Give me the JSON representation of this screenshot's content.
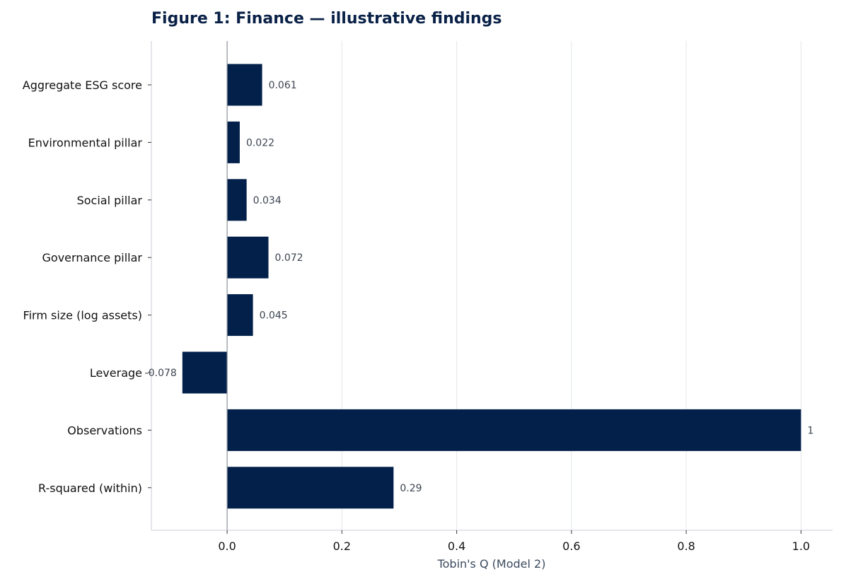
{
  "chart_data": {
    "type": "bar",
    "orientation": "horizontal",
    "title": "Figure 1: Finance — illustrative findings",
    "xlabel": "Tobin's Q (Model 2)",
    "ylabel": "",
    "categories": [
      "Aggregate ESG score",
      "Environmental pillar",
      "Social pillar",
      "Governance pillar",
      "Firm size (log assets)",
      "Leverage",
      "Observations",
      "R-squared (within)"
    ],
    "values": [
      0.061,
      0.022,
      0.034,
      0.072,
      0.045,
      -0.078,
      1,
      0.29
    ],
    "value_labels": [
      "0.061",
      "0.022",
      "0.034",
      "0.072",
      "0.045",
      "-0.078",
      "1",
      "0.29"
    ],
    "xlim": [
      -0.132,
      1.055
    ],
    "xticks": [
      0.0,
      0.2,
      0.4,
      0.6,
      0.8,
      1.0
    ],
    "xtick_labels": [
      "0.0",
      "0.2",
      "0.4",
      "0.6",
      "0.8",
      "1.0"
    ],
    "grid": "vertical",
    "legend": "none",
    "colors": {
      "bar": "#03204a",
      "title": "#0a2147",
      "value_label": "#3d4450",
      "axis_label": "#3b4a5e",
      "grid": "#e3e6ea",
      "axis": "#c9ced6",
      "zero_line": "#8a929c"
    }
  }
}
